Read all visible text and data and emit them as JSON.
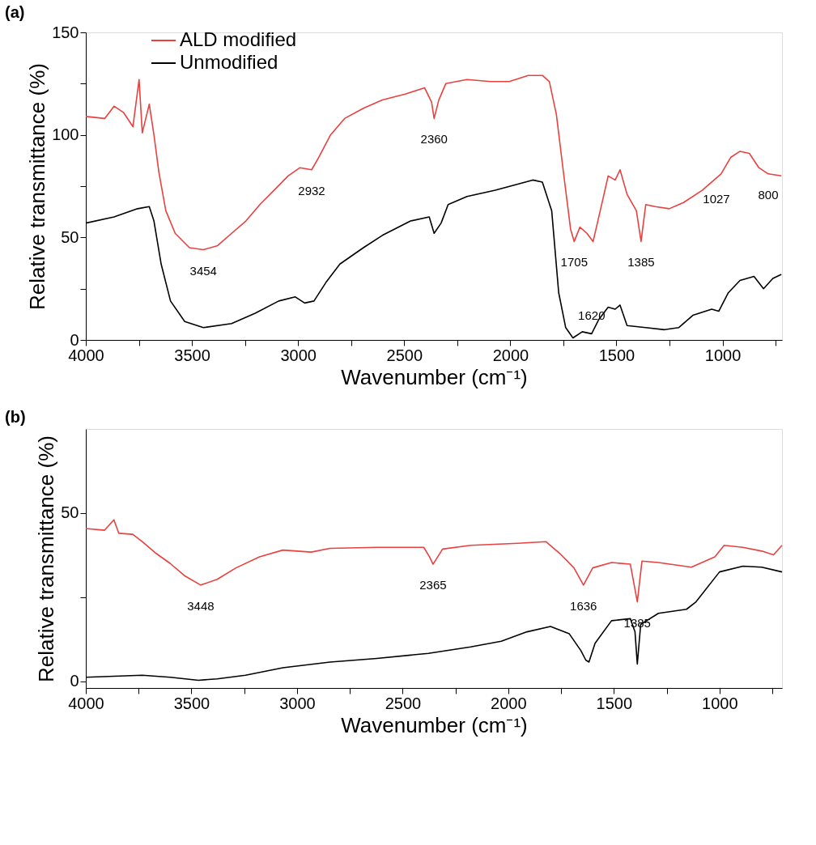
{
  "chart_data": [
    {
      "type": "line",
      "title": "(a)",
      "xlabel": "Wavenumber (cm⁻¹)",
      "ylabel": "Relative transmittance (%)",
      "xlim": [
        4000,
        720
      ],
      "ylim": [
        0,
        150
      ],
      "xticks": [
        4000,
        {
          "value": 3750,
          "label": null
        },
        3500,
        {
          "value": 3250,
          "label": null
        },
        3000,
        {
          "value": 2750,
          "label": null
        },
        2500,
        {
          "value": 2250,
          "label": null
        },
        2000,
        {
          "value": 1750,
          "label": null
        },
        1500,
        {
          "value": 1250,
          "label": null
        },
        1000,
        {
          "value": 750,
          "label": null
        }
      ],
      "yticks": [
        0,
        {
          "value": 25,
          "label": null
        },
        50,
        {
          "value": 75,
          "label": null
        },
        100,
        {
          "value": 125,
          "label": null
        },
        150
      ],
      "grid": false,
      "legend": "top left",
      "marker": "none",
      "line_style": "solid",
      "series": [
        {
          "name": "ALD modified",
          "color": "#e8413f",
          "x": [
            4000,
            3911,
            3867,
            3823,
            3778,
            3749,
            3734,
            3701,
            3679,
            3656,
            3623,
            3579,
            3512,
            3446,
            3379,
            3313,
            3246,
            3180,
            3113,
            3047,
            2991,
            2936,
            2903,
            2847,
            2781,
            2692,
            2603,
            2492,
            2404,
            2371,
            2359,
            2337,
            2304,
            2204,
            2093,
            2005,
            1916,
            1849,
            1816,
            1783,
            1750,
            1716,
            1699,
            1672,
            1639,
            1610,
            1572,
            1539,
            1506,
            1483,
            1450,
            1406,
            1384,
            1362,
            1317,
            1251,
            1184,
            1096,
            1029,
            1007,
            962,
            918,
            874,
            829,
            785,
            723
          ],
          "values": [
            109,
            108,
            114,
            111,
            104,
            127,
            101,
            115,
            100,
            82,
            63,
            52,
            45,
            44,
            46,
            52,
            58,
            66,
            73,
            80,
            84,
            83,
            89,
            100,
            108,
            113,
            117,
            120,
            123,
            116,
            108,
            117,
            125,
            127,
            126,
            126,
            129,
            129,
            126,
            110,
            82,
            54,
            48,
            55,
            52,
            48,
            65,
            80,
            78,
            83,
            71,
            63,
            48,
            66,
            65,
            64,
            67,
            73,
            79,
            81,
            89,
            92,
            91,
            84,
            81,
            80
          ]
        },
        {
          "name": "Unmodified",
          "color": "#000000",
          "x": [
            4000,
            3867,
            3756,
            3701,
            3679,
            3645,
            3601,
            3534,
            3446,
            3313,
            3202,
            3091,
            3013,
            2969,
            2925,
            2869,
            2803,
            2692,
            2603,
            2470,
            2382,
            2359,
            2326,
            2293,
            2204,
            2071,
            1894,
            1849,
            1805,
            1772,
            1739,
            1705,
            1661,
            1617,
            1583,
            1539,
            1506,
            1483,
            1450,
            1362,
            1273,
            1207,
            1140,
            1051,
            1018,
            973,
            918,
            852,
            807,
            763,
            723
          ],
          "values": [
            57,
            60,
            64,
            65,
            58,
            37,
            19,
            9,
            6,
            8,
            13,
            19,
            21,
            18,
            19,
            28,
            37,
            45,
            51,
            58,
            60,
            52,
            57,
            66,
            70,
            73,
            78,
            77,
            63,
            23,
            6,
            1,
            4,
            3,
            10,
            16,
            15,
            17,
            7,
            6,
            5,
            6,
            12,
            15,
            14,
            23,
            29,
            31,
            25,
            30,
            32
          ]
        }
      ],
      "annotations": [
        {
          "text": "3454",
          "x": 3446,
          "y": 44
        },
        {
          "text": "2932",
          "x": 2936,
          "y": 83
        },
        {
          "text": "2360",
          "x": 2359,
          "y": 108
        },
        {
          "text": "1705",
          "x": 1699,
          "y": 48
        },
        {
          "text": "1620",
          "x": 1617,
          "y": 3
        },
        {
          "text": "1385",
          "x": 1384,
          "y": 48
        },
        {
          "text": "1027",
          "x": 1029,
          "y": 79
        },
        {
          "text": "800",
          "x": 785,
          "y": 81
        }
      ]
    },
    {
      "type": "line",
      "title": "(b)",
      "xlabel": "Wavenumber (cm⁻¹)",
      "ylabel": "Relative transmittance (%)",
      "xlim": [
        4000,
        704
      ],
      "ylim": [
        -2,
        75
      ],
      "xticks": [
        4000,
        {
          "value": 3750,
          "label": null
        },
        3500,
        {
          "value": 3250,
          "label": null
        },
        3000,
        {
          "value": 2750,
          "label": null
        },
        2500,
        {
          "value": 2250,
          "label": null
        },
        2000,
        {
          "value": 1750,
          "label": null
        },
        1500,
        {
          "value": 1250,
          "label": null
        },
        1000,
        {
          "value": 750,
          "label": null
        }
      ],
      "yticks": [
        0,
        {
          "value": 25,
          "label": null
        },
        50
      ],
      "grid": false,
      "legend": "top left",
      "marker": "none",
      "line_style": "solid",
      "series": [
        {
          "name": "ALD modified",
          "color": "#e8413f",
          "x": [
            4000,
            3911,
            3867,
            3844,
            3778,
            3733,
            3667,
            3600,
            3533,
            3456,
            3378,
            3289,
            3178,
            3067,
            2933,
            2844,
            2622,
            2400,
            2373,
            2356,
            2311,
            2178,
            1956,
            1822,
            1756,
            1689,
            1644,
            1600,
            1511,
            1422,
            1389,
            1367,
            1289,
            1133,
            1022,
            978,
            889,
            800,
            744,
            704
          ],
          "values": [
            45.4,
            44.9,
            48,
            44,
            43.7,
            41.5,
            38,
            35,
            31.4,
            28.6,
            30.3,
            33.7,
            37,
            39,
            38.4,
            39.5,
            39.8,
            39.8,
            37,
            34.8,
            39.3,
            40.4,
            41,
            41.5,
            38,
            33.7,
            28.6,
            33.7,
            35.3,
            34.8,
            23.6,
            35.7,
            35.3,
            33.9,
            37,
            40.4,
            39.8,
            38.7,
            37.6,
            40.4
          ]
        },
        {
          "name": "Unmodified",
          "color": "#000000",
          "x": [
            4000,
            3733,
            3600,
            3467,
            3378,
            3244,
            3067,
            2844,
            2622,
            2378,
            2178,
            2033,
            1911,
            1800,
            1711,
            1656,
            1633,
            1618,
            1589,
            1511,
            1422,
            1400,
            1389,
            1373,
            1289,
            1156,
            1111,
            1000,
            889,
            800,
            704
          ],
          "values": [
            1.2,
            1.8,
            1.2,
            0.3,
            0.7,
            1.8,
            4,
            5.7,
            6.8,
            8.3,
            10.2,
            11.9,
            14.7,
            16.3,
            14.1,
            9.1,
            6.3,
            5.7,
            11.3,
            18,
            18.6,
            14.7,
            5.1,
            16.9,
            20.2,
            21.4,
            23.6,
            32.5,
            34.2,
            33.9,
            32.5
          ]
        }
      ],
      "annotations": [
        {
          "text": "3448",
          "x": 3456,
          "y": 28.6
        },
        {
          "text": "2365",
          "x": 2356,
          "y": 34.8
        },
        {
          "text": "1636",
          "x": 1644,
          "y": 28.6
        },
        {
          "text": "1385",
          "x": 1389,
          "y": 23.6
        }
      ]
    }
  ]
}
